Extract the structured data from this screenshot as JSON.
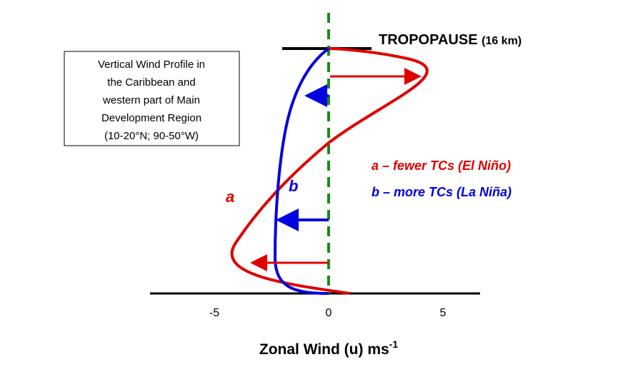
{
  "title": {
    "main": "TROPOPAUSE",
    "sub": "(16 km)"
  },
  "box": {
    "lines": [
      "Vertical Wind Profile in",
      "the Caribbean and",
      "western part of Main",
      "Development Region",
      "(10-20°N; 90-50°W)"
    ]
  },
  "legend": {
    "a": "a – fewer TCs (El Niño)",
    "b": "b – more TCs (La Niña)"
  },
  "curve_labels": {
    "a": "a",
    "b": "b"
  },
  "axis": {
    "label": "Zonal Wind (u) ms",
    "label_sup": "-1",
    "ticks": [
      -5,
      0,
      5
    ]
  }
}
